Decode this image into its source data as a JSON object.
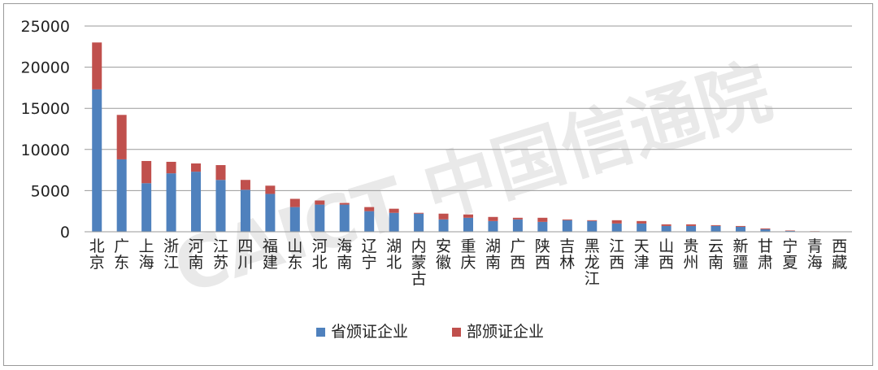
{
  "chart_data": {
    "type": "bar",
    "stacked": true,
    "categories": [
      "北京",
      "广东",
      "上海",
      "浙江",
      "河南",
      "江苏",
      "四川",
      "福建",
      "山东",
      "河北",
      "海南",
      "辽宁",
      "湖北",
      "内蒙古",
      "安徽",
      "重庆",
      "湖南",
      "广西",
      "陕西",
      "吉林",
      "黑龙江",
      "江西",
      "天津",
      "山西",
      "贵州",
      "云南",
      "新疆",
      "甘肃",
      "宁夏",
      "青海",
      "西藏"
    ],
    "series": [
      {
        "name": "省颁证企业",
        "color": "#4f81bd",
        "values": [
          17300,
          8800,
          5900,
          7100,
          7300,
          6300,
          5100,
          4600,
          3000,
          3300,
          3300,
          2500,
          2300,
          2200,
          1500,
          1700,
          1300,
          1500,
          1200,
          1400,
          1300,
          1000,
          1000,
          700,
          700,
          700,
          600,
          300,
          100,
          50,
          30
        ]
      },
      {
        "name": "部颁证企业",
        "color": "#c0504d",
        "values": [
          5700,
          5400,
          2700,
          1400,
          1000,
          1800,
          1200,
          1000,
          1000,
          500,
          200,
          500,
          500,
          100,
          700,
          400,
          500,
          200,
          500,
          100,
          100,
          400,
          300,
          200,
          200,
          100,
          100,
          100,
          50,
          20,
          10
        ]
      }
    ],
    "yticks": [
      0,
      5000,
      10000,
      15000,
      20000,
      25000
    ],
    "ylim": [
      0,
      25000
    ],
    "grid": true,
    "legend": "bottom",
    "watermark": "CAICT 中国信通院"
  }
}
